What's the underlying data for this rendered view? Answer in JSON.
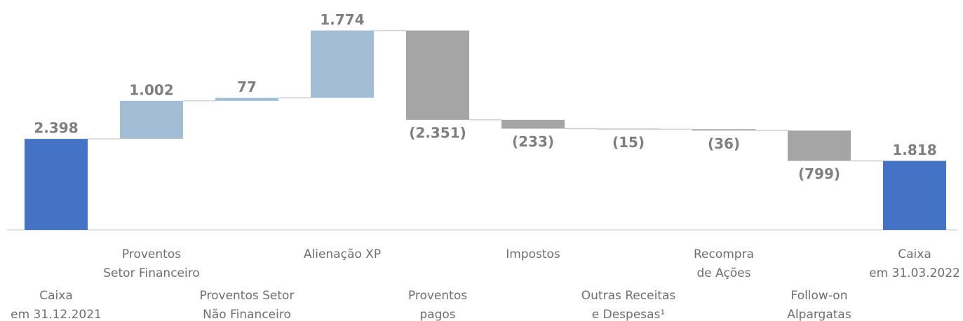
{
  "chart_data": {
    "type": "waterfall",
    "categories": [
      [
        "Caixa",
        "em 31.12.2021"
      ],
      [
        "Proventos",
        "Setor Financeiro"
      ],
      [
        "Proventos Setor",
        "Não Financeiro"
      ],
      [
        "Alienação XP"
      ],
      [
        "Proventos",
        "pagos"
      ],
      [
        "Impostos"
      ],
      [
        "Outras Receitas",
        "e Despesas¹"
      ],
      [
        "Recompra",
        "de Ações"
      ],
      [
        "Follow-on",
        "Alpargatas"
      ],
      [
        "Caixa",
        "em 31.03.2022"
      ]
    ],
    "values": [
      2398,
      1002,
      77,
      1774,
      -2351,
      -233,
      -15,
      -36,
      -799,
      1818
    ],
    "value_labels": [
      "2.398",
      "1.002",
      "77",
      "1.774",
      "(2.351)",
      "(233)",
      "(15)",
      "(36)",
      "(799)",
      "1.818"
    ],
    "totals": [
      0,
      9
    ],
    "colors": {
      "total": "#4472c4",
      "increase": "#a2bdd4",
      "decrease": "#a5a5a5"
    },
    "ylim": [
      0,
      6000
    ]
  }
}
